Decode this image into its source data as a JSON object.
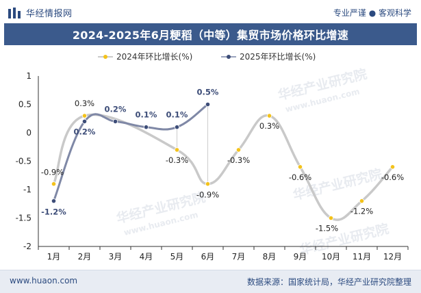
{
  "header": {
    "brand": "华经情报网",
    "tagline": "专业严谨 ● 客观科学"
  },
  "title": "2024-2025年6月粳稻（中等）集贸市场价格环比增速",
  "footer": {
    "website": "www.huaon.com",
    "source": "数据来源：国家统计局，华经产业研究院整理"
  },
  "watermark": {
    "name": "华经产业研究院",
    "url": "www.huaon.com"
  },
  "colors": {
    "series_2024": "#f3c21b",
    "series_2025": "#3d4d78",
    "line_2024": "#c9c9c9",
    "title_band": "#3b5a8c",
    "brand_text": "#2b4a7f"
  },
  "chart_data": {
    "type": "line",
    "categories": [
      "1月",
      "2月",
      "3月",
      "4月",
      "5月",
      "6月",
      "7月",
      "8月",
      "9月",
      "10月",
      "11月",
      "12月"
    ],
    "series": [
      {
        "name": "2024年环比增长(%)",
        "values": [
          -0.9,
          0.3,
          null,
          null,
          -0.3,
          -0.9,
          -0.3,
          0.3,
          -0.6,
          -1.5,
          -1.2,
          -0.6
        ],
        "labels": [
          "-0.9%",
          "0.3%",
          "",
          "",
          "-0.3%",
          "-0.9%",
          "-0.3%",
          "0.3%",
          "-0.6%",
          "-1.5%",
          "-1.2%",
          "-0.6%"
        ]
      },
      {
        "name": "2025年环比增长(%)",
        "values": [
          -1.2,
          0.2,
          0.2,
          0.1,
          0.1,
          0.5,
          null,
          null,
          null,
          null,
          null,
          null
        ],
        "labels": [
          "-1.2%",
          "0.2%",
          "0.2%",
          "0.1%",
          "0.1%",
          "0.5%",
          "",
          "",
          "",
          "",
          "",
          ""
        ]
      }
    ],
    "ylim": [
      -2,
      1
    ],
    "yticks": [
      "1",
      "0.5",
      "0",
      "-0.5",
      "-1",
      "-1.5",
      "-2"
    ],
    "legend_position": "top-center",
    "grid": false
  }
}
